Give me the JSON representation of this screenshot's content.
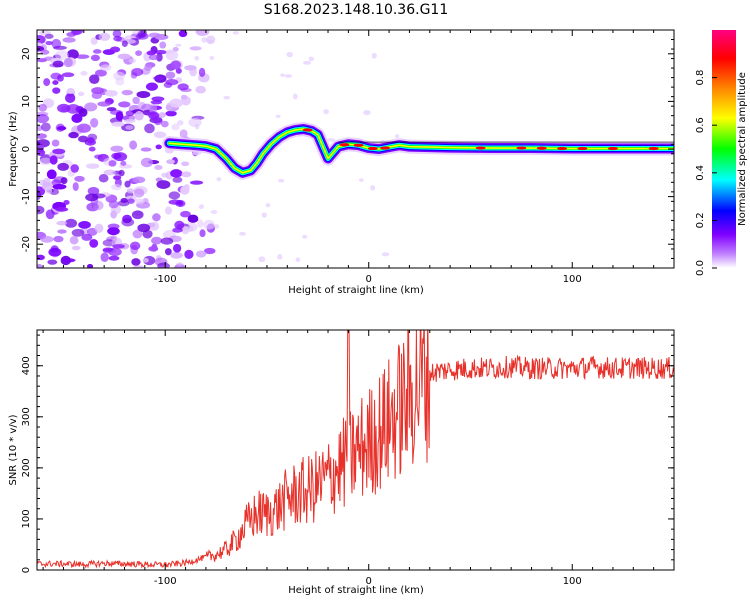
{
  "title": "S168.2023.148.10.36.G11",
  "chart_data": [
    {
      "type": "heatmap",
      "xlabel": "Height of straight line (km)",
      "ylabel": "Frequency (Hz)",
      "xlim": [
        -163,
        150
      ],
      "ylim": [
        -25,
        25
      ],
      "xticks": [
        -100,
        0,
        100
      ],
      "xtick_labels": [
        "-100",
        "0",
        "100"
      ],
      "yticks": [
        -20,
        -10,
        0,
        10,
        20
      ],
      "ytick_labels": [
        "-20",
        "-10",
        "0",
        "10",
        "20"
      ],
      "ridge_path": [
        [
          -98,
          1.2
        ],
        [
          -92,
          1.0
        ],
        [
          -85,
          0.8
        ],
        [
          -80,
          0.6
        ],
        [
          -75,
          0
        ],
        [
          -70,
          -2
        ],
        [
          -66,
          -4
        ],
        [
          -62,
          -5
        ],
        [
          -58,
          -4.5
        ],
        [
          -55,
          -3
        ],
        [
          -52,
          -1
        ],
        [
          -48,
          1
        ],
        [
          -44,
          2.5
        ],
        [
          -40,
          3.5
        ],
        [
          -36,
          4
        ],
        [
          -32,
          4.2
        ],
        [
          -28,
          3.8
        ],
        [
          -25,
          3
        ],
        [
          -22,
          0
        ],
        [
          -20,
          -2
        ],
        [
          -18,
          -1
        ],
        [
          -15,
          0.5
        ],
        [
          -10,
          1
        ],
        [
          -5,
          0.8
        ],
        [
          0,
          0.2
        ],
        [
          5,
          0
        ],
        [
          10,
          0.4
        ],
        [
          15,
          0.8
        ],
        [
          20,
          0.5
        ],
        [
          30,
          0.4
        ],
        [
          40,
          0.3
        ],
        [
          60,
          0.2
        ],
        [
          80,
          0.2
        ],
        [
          100,
          0.1
        ],
        [
          120,
          0.1
        ],
        [
          150,
          0.1
        ]
      ],
      "noise_region_x": [
        -163,
        -80
      ],
      "colorbar": {
        "label": "Normalized spectral amplitude",
        "ticks": [
          0.0,
          0.2,
          0.4,
          0.6,
          0.8
        ],
        "tick_labels": [
          "0.0",
          "0.2",
          "0.4",
          "0.6",
          "0.8"
        ],
        "colors": [
          "#ffffff",
          "#8000ff",
          "#0000ff",
          "#00ffff",
          "#00ff00",
          "#ffff00",
          "#ff8000",
          "#ff0000",
          "#ff0080"
        ]
      }
    },
    {
      "type": "line",
      "xlabel": "Height of straight line (km)",
      "ylabel": "SNR (10 * v/v)",
      "xlim": [
        -163,
        150
      ],
      "ylim": [
        0,
        470
      ],
      "xticks": [
        -100,
        0,
        100
      ],
      "xtick_labels": [
        "-100",
        "0",
        "100"
      ],
      "yticks": [
        0,
        100,
        200,
        300,
        400
      ],
      "ytick_labels": [
        "0",
        "100",
        "200",
        "300",
        "400"
      ],
      "color": "#e8312a",
      "x": [
        -163,
        -150,
        -140,
        -130,
        -120,
        -110,
        -100,
        -90,
        -80,
        -75,
        -70,
        -65,
        -60,
        -55,
        -50,
        -45,
        -40,
        -35,
        -30,
        -25,
        -20,
        -15,
        -10,
        -5,
        0,
        5,
        10,
        15,
        20,
        25,
        30,
        35,
        40,
        50,
        60,
        70,
        80,
        90,
        100,
        110,
        120,
        130,
        140,
        150
      ],
      "y": [
        12,
        12,
        11,
        13,
        12,
        11,
        10,
        14,
        25,
        30,
        40,
        60,
        90,
        110,
        110,
        120,
        140,
        150,
        155,
        165,
        180,
        200,
        215,
        235,
        250,
        270,
        290,
        315,
        340,
        370,
        385,
        390,
        392,
        395,
        395,
        398,
        395,
        395,
        395,
        398,
        395,
        396,
        395,
        395
      ]
    }
  ]
}
